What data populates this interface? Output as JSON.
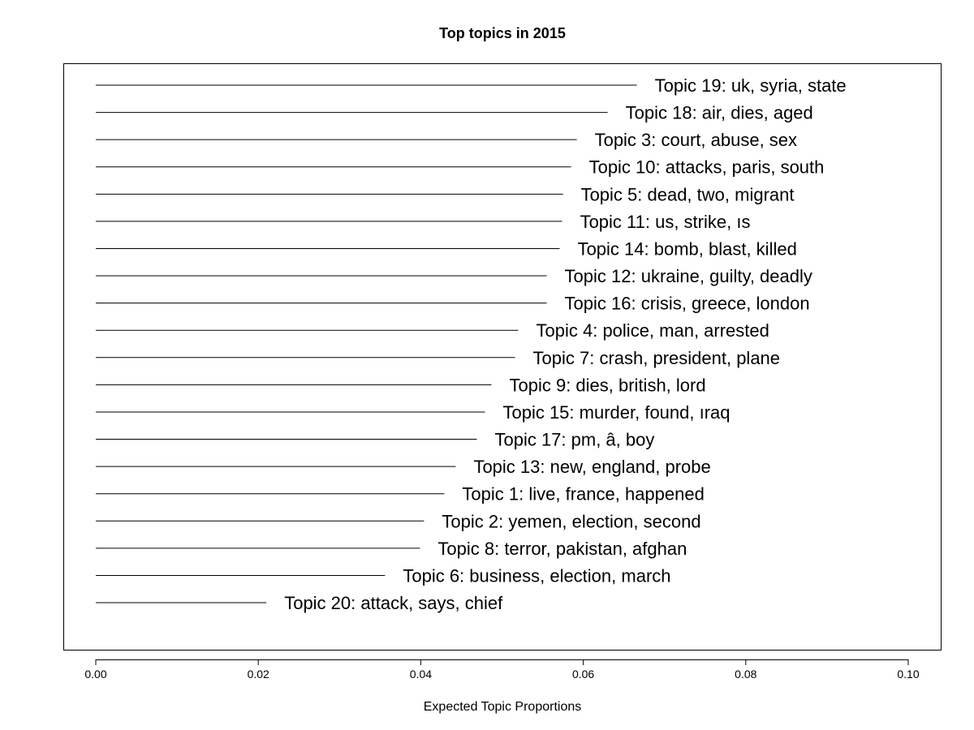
{
  "chart_data": {
    "type": "bar",
    "orientation": "horizontal",
    "title": "Top topics in 2015",
    "xlabel": "Expected Topic Proportions",
    "ylabel": "",
    "xlim": [
      0.0,
      0.1
    ],
    "x_ticks": [
      "0.00",
      "0.02",
      "0.04",
      "0.06",
      "0.08",
      "0.10"
    ],
    "x_tick_values": [
      0.0,
      0.02,
      0.04,
      0.06,
      0.08,
      0.1
    ],
    "grid": false,
    "categories": [
      "Topic 19: uk, syria, state",
      "Topic 18: air, dies, aged",
      "Topic 3: court, abuse, sex",
      "Topic 10: attacks, paris, south",
      "Topic 5: dead, two, migrant",
      "Topic 11: us, strike, ıs",
      "Topic 14: bomb, blast, killed",
      "Topic 12: ukraine, guilty, deadly",
      "Topic 16: crisis, greece, london",
      "Topic 4: police, man, arrested",
      "Topic 7: crash, president, plane",
      "Topic 9: dies, british, lord",
      "Topic 15: murder, found, ıraq",
      "Topic 17: pm, â, boy",
      "Topic 13: new, england, probe",
      "Topic 1: live, france, happened",
      "Topic 2: yemen, election, second",
      "Topic 8: terror, pakistan, afghan",
      "Topic 6: business, election, march",
      "Topic 20: attack, says, chief"
    ],
    "values": [
      0.0666,
      0.063,
      0.0592,
      0.0585,
      0.0575,
      0.0574,
      0.0571,
      0.0555,
      0.0555,
      0.052,
      0.0516,
      0.0487,
      0.0479,
      0.0469,
      0.0443,
      0.0429,
      0.0404,
      0.0399,
      0.0356,
      0.021
    ]
  }
}
